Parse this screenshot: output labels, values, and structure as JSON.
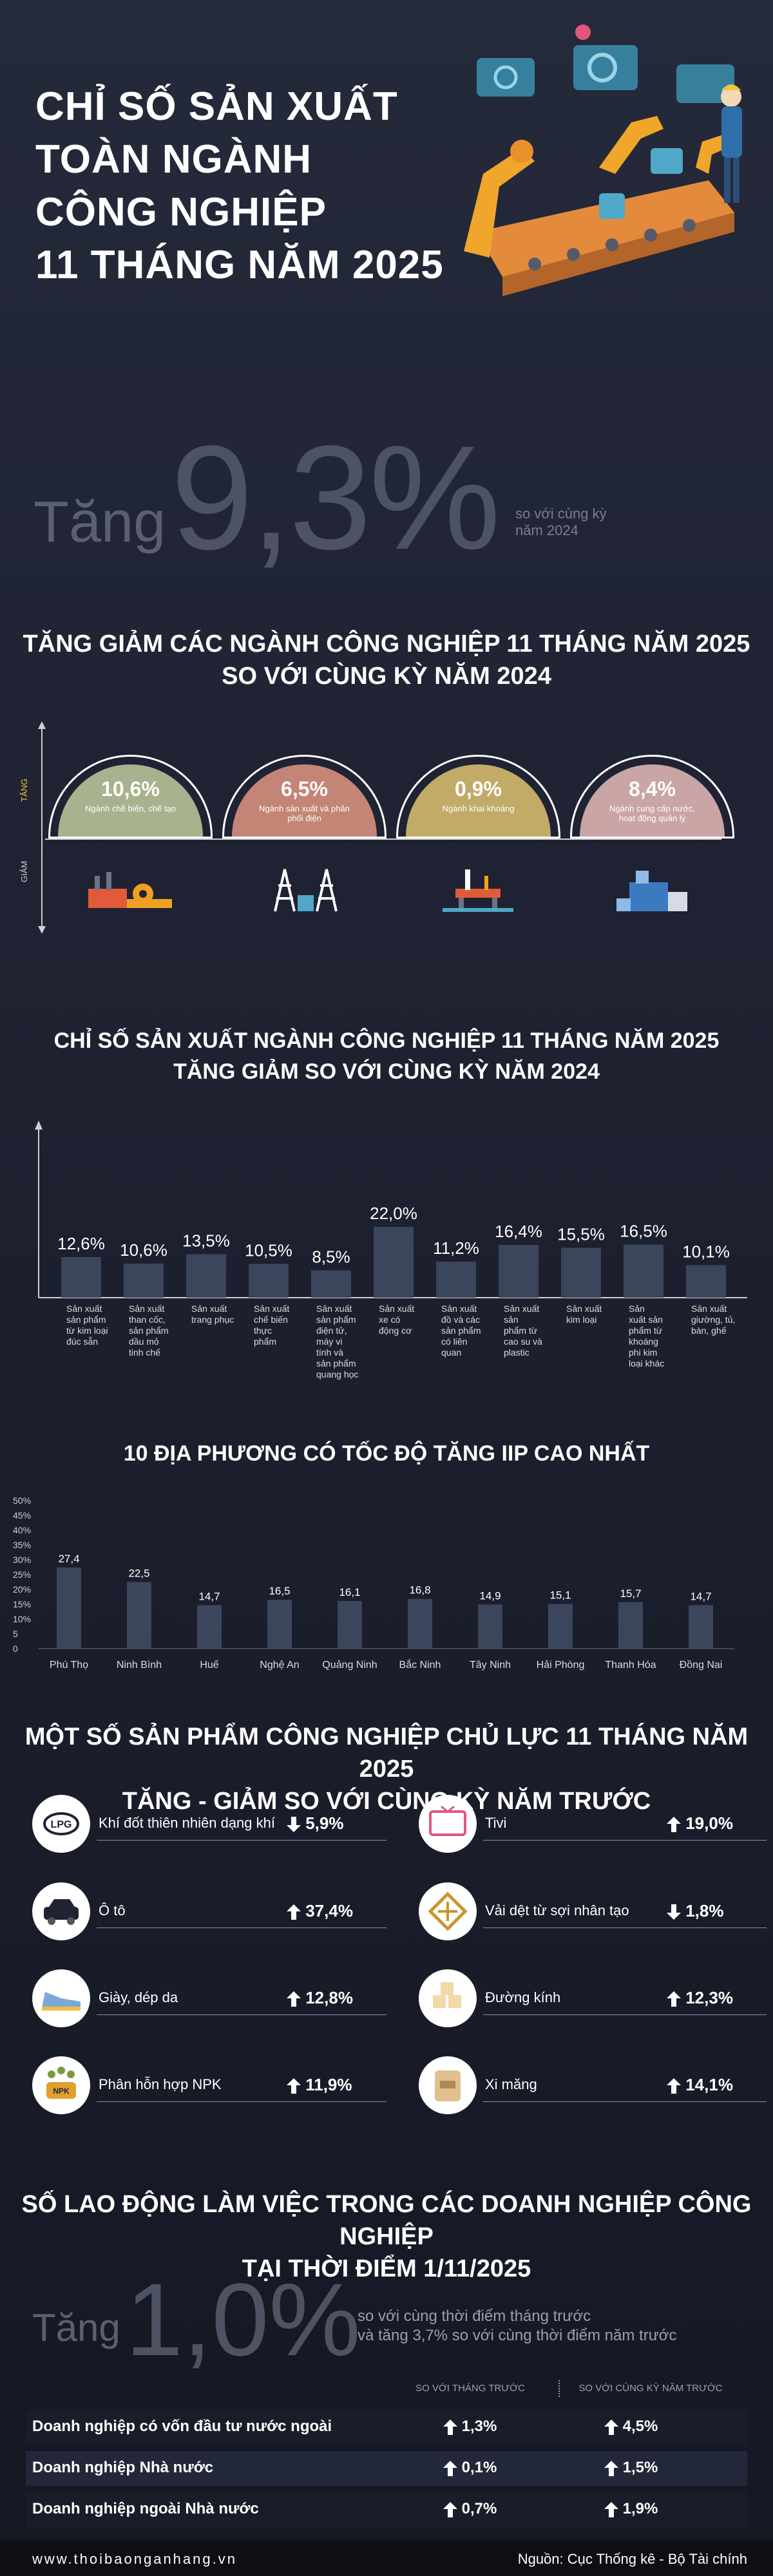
{
  "hero": {
    "title_lines": [
      "CHỈ SỐ SẢN XUẤT",
      "TOÀN NGÀNH",
      "CÔNG NGHIỆP",
      "11 THÁNG NĂM 2025"
    ],
    "increase_word": "Tăng",
    "increase_value": "9,3%",
    "increase_note_1": "so với cùng kỳ",
    "increase_note_2": "năm 2024"
  },
  "sectors": {
    "title_1": "TĂNG GIẢM CÁC NGÀNH CÔNG NGHIỆP 11 THÁNG NĂM 2025",
    "title_2": "SO VỚI CÙNG KỲ NĂM 2024",
    "axis_up": "TĂNG",
    "axis_down": "GIẢM",
    "items": [
      {
        "value": "10,6%",
        "label": "Ngành chế biến, chế tạo",
        "color": "#a9b28e",
        "icon": "factory-icon"
      },
      {
        "value": "6,5%",
        "label": "Ngành sản xuất và phân phối điện",
        "color": "#c48476",
        "icon": "power-tower-icon"
      },
      {
        "value": "0,9%",
        "label": "Ngành khai khoáng",
        "color": "#c2ab67",
        "icon": "oil-rig-icon"
      },
      {
        "value": "8,4%",
        "label": "Ngành cung cấp nước, hoạt động quản lý",
        "color": "#c9a5a5",
        "icon": "water-plant-icon"
      }
    ]
  },
  "chart1": {
    "title_1": "CHỈ SỐ SẢN XUẤT NGÀNH CÔNG NGHIỆP 11 THÁNG NĂM 2025",
    "title_2": "TĂNG GIẢM SO VỚI CÙNG KỲ NĂM 2024",
    "value_labels": [
      "12,6%",
      "10,6%",
      "13,5%",
      "10,5%",
      "8,5%",
      "22,0%",
      "11,2%",
      "16,4%",
      "15,5%",
      "16,5%",
      "10,1%"
    ],
    "cat_lines": [
      [
        "Sản xuất",
        "sản phẩm",
        "từ kim loại",
        "đúc sẵn"
      ],
      [
        "Sản xuất",
        "than cốc,",
        "sản phẩm",
        "dầu mỏ",
        "tinh chế"
      ],
      [
        "Sản xuất",
        "trang phục"
      ],
      [
        "Sản xuất",
        "chế biến",
        "thực",
        "phẩm"
      ],
      [
        "Sản xuất",
        "sản phẩm",
        "điện tử,",
        "máy vi",
        "tính và",
        "sản phẩm",
        "quang học"
      ],
      [
        "Sản xuất",
        "xe có",
        "động cơ"
      ],
      [
        "Sản xuất",
        "đồ và các",
        "sản phẩm",
        "có liên",
        "quan"
      ],
      [
        "Sản xuất",
        "sản",
        "phẩm từ",
        "cao su và",
        "plastic"
      ],
      [
        "Sản xuất",
        "kim loại"
      ],
      [
        "Sản",
        "xuất sản",
        "phẩm từ",
        "khoáng",
        "phi kim",
        "loại khác"
      ],
      [
        "Sản xuất",
        "giường, tủ,",
        "bàn, ghế"
      ]
    ]
  },
  "chart_data": [
    {
      "type": "bar",
      "title": "CHỈ SỐ SẢN XUẤT NGÀNH CÔNG NGHIỆP 11 THÁNG NĂM 2025 TĂNG GIẢM SO VỚI CÙNG KỲ NĂM 2024",
      "categories": [
        "Sản xuất sản phẩm từ kim loại đúc sẵn",
        "Sản xuất than cốc, sản phẩm dầu mỏ tinh chế",
        "Sản xuất trang phục",
        "Sản xuất chế biến thực phẩm",
        "Sản xuất sản phẩm điện tử, máy vi tính và sản phẩm quang học",
        "Sản xuất xe có động cơ",
        "Sản xuất đồ và các sản phẩm có liên quan",
        "Sản xuất sản phẩm từ cao su và plastic",
        "Sản xuất kim loại",
        "Sản xuất sản phẩm từ khoáng phi kim loại khác",
        "Sản xuất giường, tủ, bàn, ghế"
      ],
      "values": [
        12.6,
        10.6,
        13.5,
        10.5,
        8.5,
        22.0,
        11.2,
        16.4,
        15.5,
        16.5,
        10.1
      ],
      "ylim": [
        0,
        25
      ]
    },
    {
      "type": "bar",
      "title": "10 ĐỊA PHƯƠNG CÓ TỐC ĐỘ TĂNG IIP CAO NHẤT",
      "categories": [
        "Phú Thọ",
        "Ninh Bình",
        "Huế",
        "Nghệ An",
        "Quảng Ninh",
        "Bắc Ninh",
        "Tây Ninh",
        "Hải Phòng",
        "Thanh Hóa",
        "Đồng Nai"
      ],
      "values": [
        27.4,
        22.5,
        14.7,
        16.5,
        16.1,
        16.8,
        14.9,
        15.1,
        15.7,
        14.7
      ],
      "ylim": [
        0,
        50
      ],
      "yticks": [
        "0",
        "5",
        "10%",
        "15%",
        "20%",
        "25%",
        "30%",
        "35%",
        "40%",
        "45%",
        "50%"
      ],
      "grid": false
    }
  ],
  "chart2": {
    "title": "10 ĐỊA PHƯƠNG CÓ TỐC ĐỘ TĂNG IIP CAO NHẤT",
    "value_labels": [
      "27,4",
      "22,5",
      "14,7",
      "16,5",
      "16,1",
      "16,8",
      "14,9",
      "15,1",
      "15,7",
      "14,7"
    ],
    "ytick_labels": [
      "0",
      "5",
      "10%",
      "15%",
      "20%",
      "25%",
      "30%",
      "35%",
      "40%",
      "45%",
      "50%"
    ]
  },
  "products": {
    "title_1": "MỘT SỐ SẢN PHẨM CÔNG NGHIỆP CHỦ LỰC 11 THÁNG NĂM 2025",
    "title_2": "TĂNG - GIẢM SO VỚI CÙNG KỲ NĂM TRƯỚC",
    "left": [
      {
        "name": "Khí đốt thiên nhiên dạng khí",
        "value": "5,9%",
        "dir": "down",
        "icon": "lpg-icon"
      },
      {
        "name": "Ô tô",
        "value": "37,4%",
        "dir": "up",
        "icon": "car-icon"
      },
      {
        "name": "Giày, dép da",
        "value": "12,8%",
        "dir": "up",
        "icon": "shoe-icon"
      },
      {
        "name": "Phân hỗn hợp NPK",
        "value": "11,9%",
        "dir": "up",
        "icon": "fertilizer-icon"
      }
    ],
    "right": [
      {
        "name": "Tivi",
        "value": "19,0%",
        "dir": "up",
        "icon": "tv-icon"
      },
      {
        "name": "Vải dệt từ sợi nhân tạo",
        "value": "1,8%",
        "dir": "down",
        "icon": "fabric-icon"
      },
      {
        "name": "Đường kính",
        "value": "12,3%",
        "dir": "up",
        "icon": "sugar-icon"
      },
      {
        "name": "Xi măng",
        "value": "14,1%",
        "dir": "up",
        "icon": "cement-icon"
      }
    ]
  },
  "labor": {
    "title_1": "SỐ LAO ĐỘNG LÀM VIỆC TRONG CÁC DOANH NGHIỆP CÔNG NGHIỆP",
    "title_2": "TẠI THỜI ĐIỂM 1/11/2025",
    "increase_word": "Tăng",
    "increase_value": "1,0%",
    "note_1": "so với cùng thời điểm tháng trước",
    "note_2": "và tăng 3,7% so với cùng thời điểm năm trước",
    "col_1": "SO VỚI THÁNG TRƯỚC",
    "col_2": "SO VỚI CÙNG KỲ NĂM TRƯỚC",
    "rows": [
      {
        "name": "Doanh nghiệp có vốn đầu tư nước ngoài",
        "v1": "1,3%",
        "v2": "4,5%"
      },
      {
        "name": "Doanh nghiệp Nhà nước",
        "v1": "0,1%",
        "v2": "1,5%"
      },
      {
        "name": "Doanh nghiệp ngoài Nhà nước",
        "v1": "0,7%",
        "v2": "1,9%"
      }
    ]
  },
  "footer": {
    "site": "www.thoibaonganhang.vn",
    "source": "Nguồn: Cục Thống kê - Bộ Tài chính"
  }
}
